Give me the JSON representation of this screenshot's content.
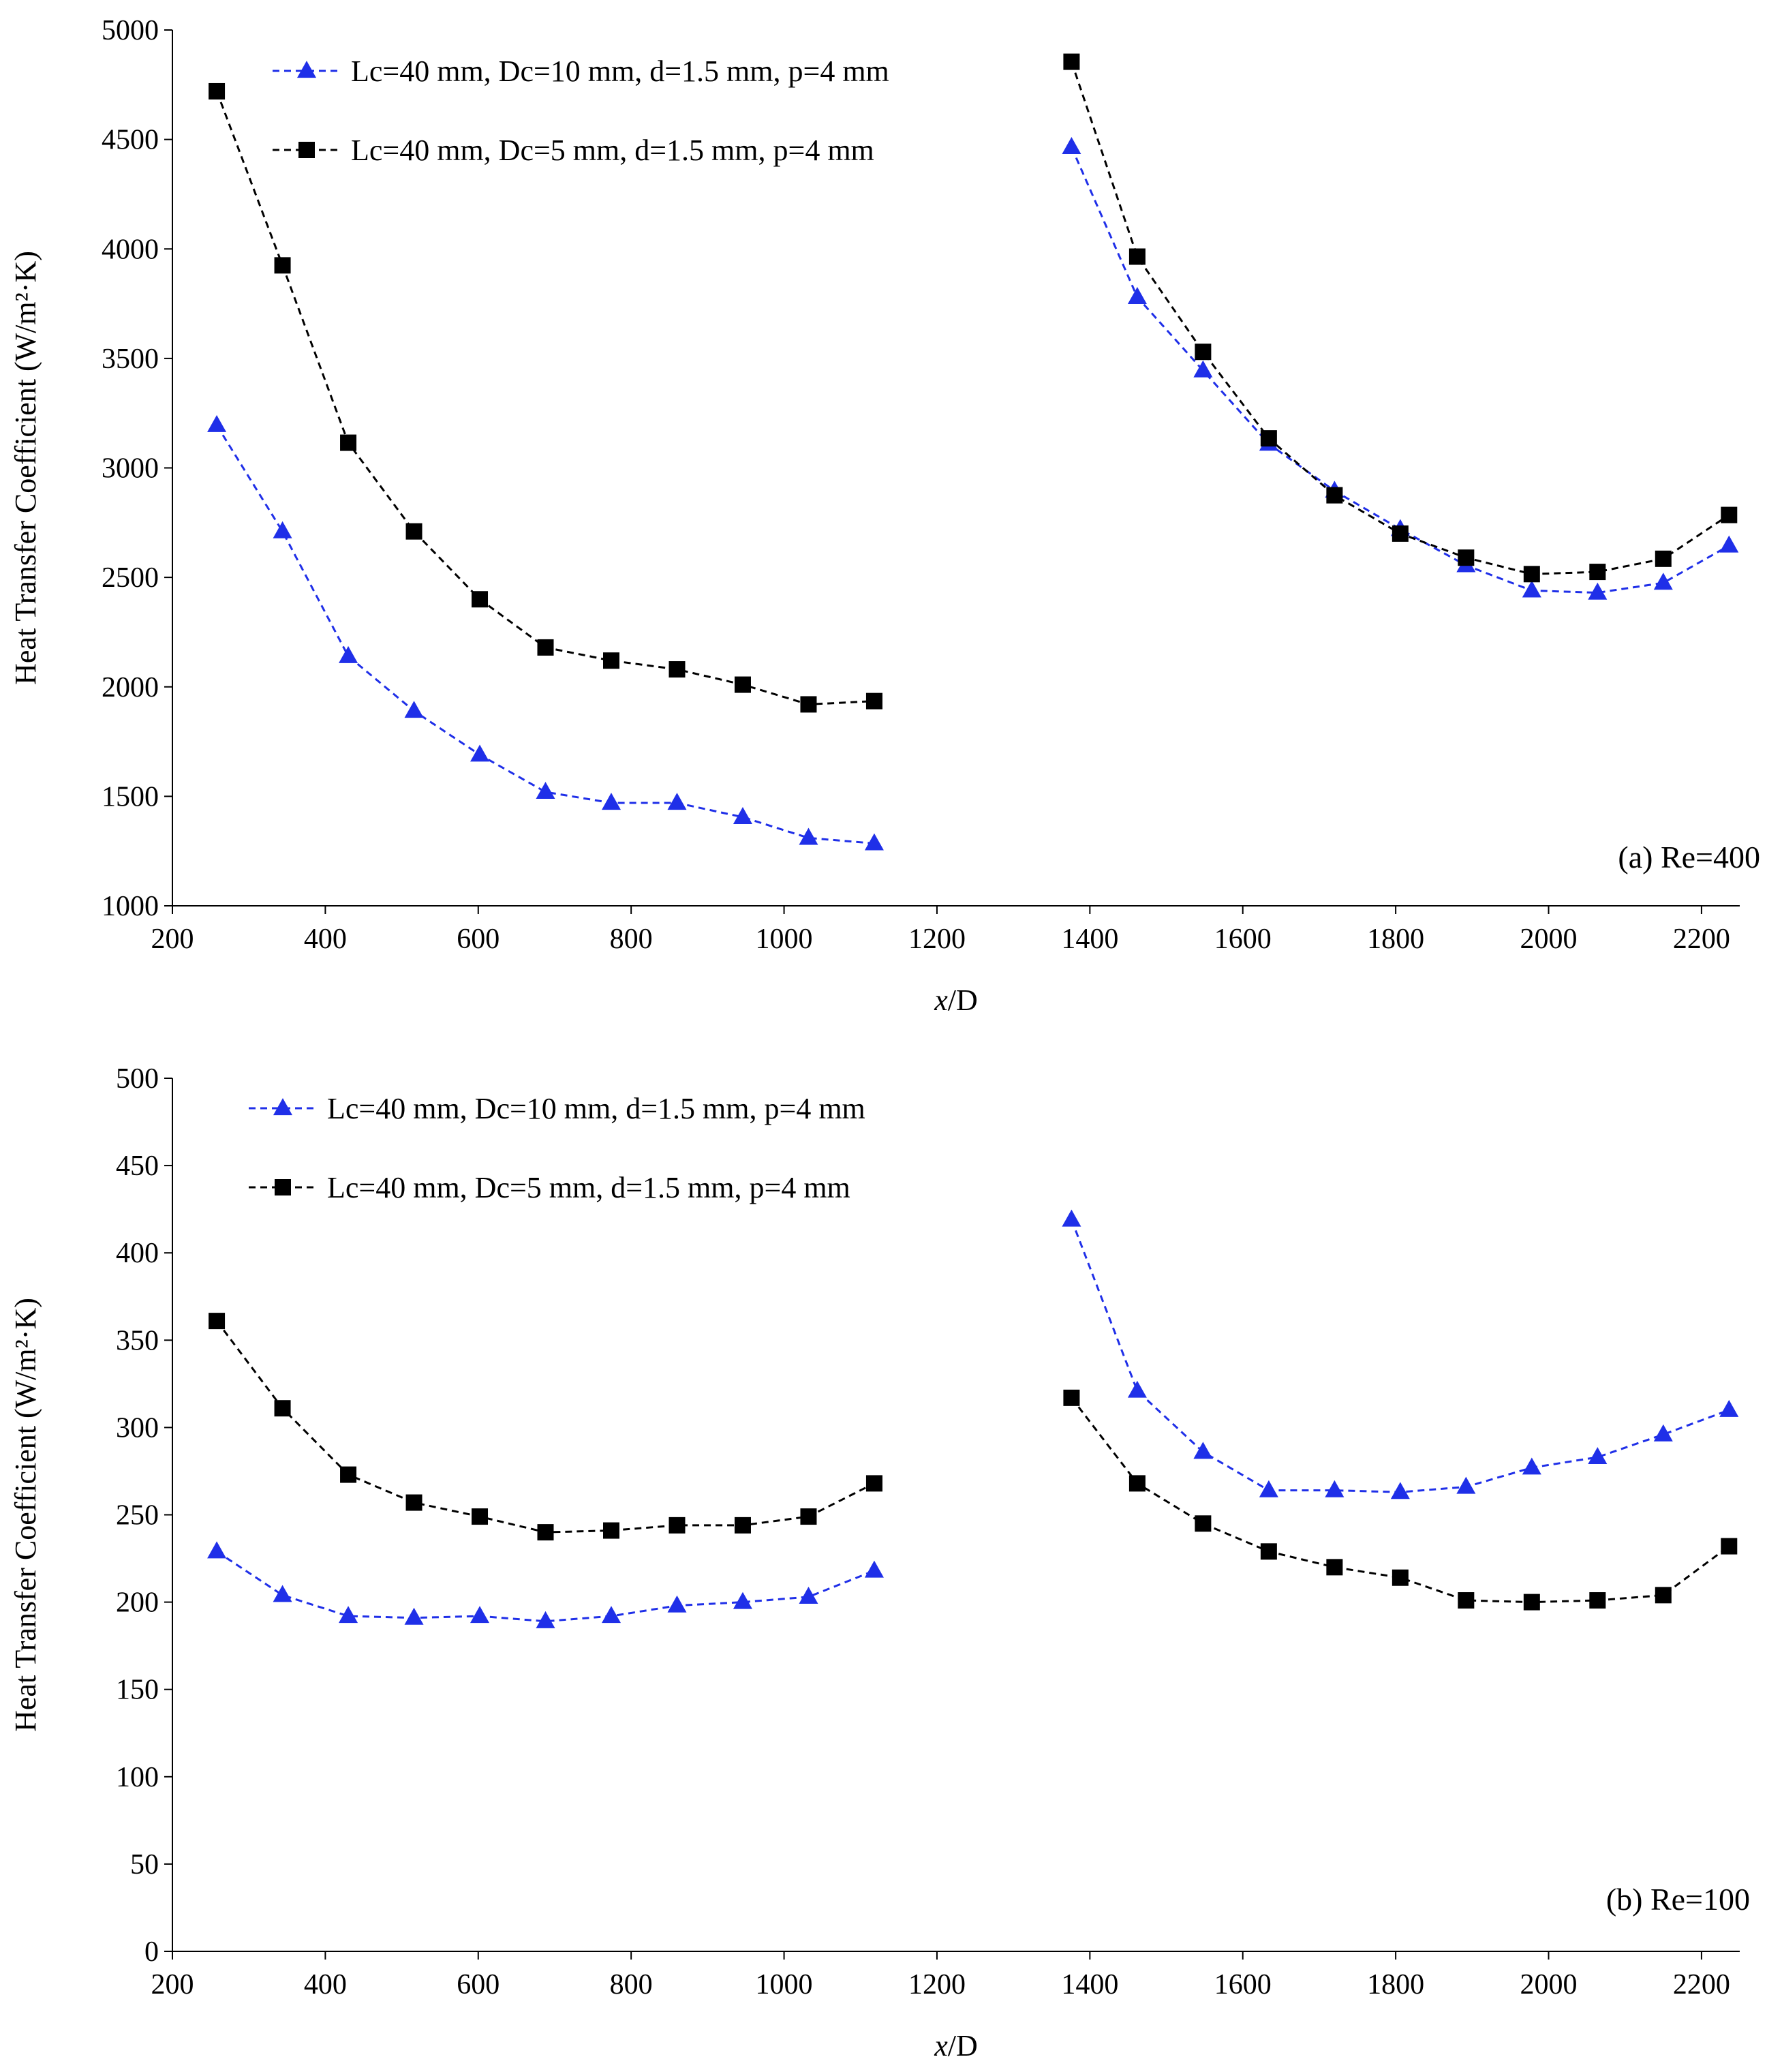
{
  "chart_data": [
    {
      "type": "line",
      "panel": "a",
      "annotation": "(a) Re=400",
      "xlabel": "x/D",
      "xlabel_italic_part": "x",
      "xlabel_rest": "/D",
      "ylabel": "Heat Transfer Coefficient (W/m²·K)",
      "xlim": [
        200,
        2250
      ],
      "ylim": [
        1000,
        5000
      ],
      "xticks": [
        200,
        400,
        600,
        800,
        1000,
        1200,
        1400,
        1600,
        1800,
        2000,
        2200
      ],
      "yticks": [
        1000,
        1500,
        2000,
        2500,
        3000,
        3500,
        4000,
        4500,
        5000
      ],
      "grid": false,
      "legend_position": "top-left",
      "series": [
        {
          "name": "Lc=40 mm, Dc=10 mm, d=1.5 mm, p=4 mm",
          "color": "#1f2fe8",
          "marker": "triangle",
          "line_style": "dashed",
          "segments": [
            {
              "x": [
                258,
                344,
                430,
                516,
                602,
                688,
                774,
                860,
                946,
                1032,
                1118
              ],
              "y": [
                3195,
                2710,
                2140,
                1890,
                1690,
                1520,
                1470,
                1470,
                1405,
                1310,
                1285
              ]
            },
            {
              "x": [
                1376,
                1462,
                1548,
                1634,
                1720,
                1806,
                1892,
                1978,
                2064,
                2150,
                2236
              ],
              "y": [
                4465,
                3780,
                3445,
                3110,
                2895,
                2720,
                2555,
                2440,
                2430,
                2475,
                2645
              ]
            }
          ]
        },
        {
          "name": "Lc=40 mm, Dc=5 mm, d=1.5 mm, p=4 mm",
          "color": "#000000",
          "marker": "square",
          "line_style": "dashed",
          "segments": [
            {
              "x": [
                258,
                344,
                430,
                516,
                602,
                688,
                774,
                860,
                946,
                1032,
                1118
              ],
              "y": [
                4720,
                3925,
                3115,
                2710,
                2400,
                2180,
                2120,
                2080,
                2010,
                1920,
                1935
              ]
            },
            {
              "x": [
                1376,
                1462,
                1548,
                1634,
                1720,
                1806,
                1892,
                1978,
                2064,
                2150,
                2236
              ],
              "y": [
                4855,
                3965,
                3530,
                3135,
                2875,
                2700,
                2590,
                2515,
                2525,
                2585,
                2785
              ]
            }
          ]
        }
      ]
    },
    {
      "type": "line",
      "panel": "b",
      "annotation": "(b) Re=100",
      "xlabel": "x/D",
      "xlabel_italic_part": "x",
      "xlabel_rest": "/D",
      "ylabel": "Heat Transfer Coefficient (W/m²·K)",
      "xlim": [
        200,
        2250
      ],
      "ylim": [
        0,
        500
      ],
      "xticks": [
        200,
        400,
        600,
        800,
        1000,
        1200,
        1400,
        1600,
        1800,
        2000,
        2200
      ],
      "yticks": [
        0,
        50,
        100,
        150,
        200,
        250,
        300,
        350,
        400,
        450,
        500
      ],
      "grid": false,
      "legend_position": "top-left",
      "series": [
        {
          "name": "Lc=40 mm, Dc=10 mm, d=1.5 mm, p=4 mm",
          "color": "#1f2fe8",
          "marker": "triangle",
          "line_style": "dashed",
          "segments": [
            {
              "x": [
                258,
                344,
                430,
                516,
                602,
                688,
                774,
                860,
                946,
                1032,
                1118
              ],
              "y": [
                229,
                204,
                192,
                191,
                192,
                189,
                192,
                198,
                200,
                203,
                218
              ]
            },
            {
              "x": [
                1376,
                1462,
                1548,
                1634,
                1720,
                1806,
                1892,
                1978,
                2064,
                2150,
                2236
              ],
              "y": [
                419,
                321,
                286,
                264,
                264,
                263,
                266,
                277,
                283,
                296,
                310
              ]
            }
          ]
        },
        {
          "name": "Lc=40 mm, Dc=5 mm, d=1.5 mm, p=4 mm",
          "color": "#000000",
          "marker": "square",
          "line_style": "dashed",
          "segments": [
            {
              "x": [
                258,
                344,
                430,
                516,
                602,
                688,
                774,
                860,
                946,
                1032,
                1118
              ],
              "y": [
                361,
                311,
                273,
                257,
                249,
                240,
                241,
                244,
                244,
                249,
                268
              ]
            },
            {
              "x": [
                1376,
                1462,
                1548,
                1634,
                1720,
                1806,
                1892,
                1978,
                2064,
                2150,
                2236
              ],
              "y": [
                317,
                268,
                245,
                229,
                220,
                214,
                201,
                200,
                201,
                204,
                232
              ]
            }
          ]
        }
      ]
    }
  ]
}
